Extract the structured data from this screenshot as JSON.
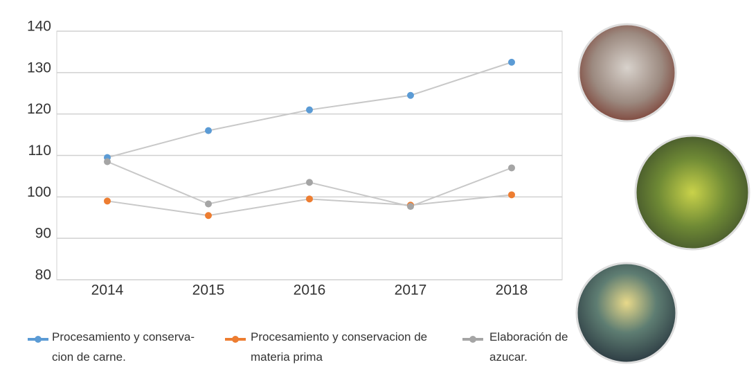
{
  "chart_data": {
    "type": "line",
    "categories": [
      "2014",
      "2015",
      "2016",
      "2017",
      "2018"
    ],
    "series": [
      {
        "name": "Procesamiento y conserva-cion de carne.",
        "color": "#5b9bd5",
        "values": [
          109.5,
          116,
          121,
          124.5,
          132.5
        ]
      },
      {
        "name": "Procesamiento y conservacion de materia prima",
        "color": "#ed7d31",
        "values": [
          99,
          95.5,
          99.5,
          98,
          100.5
        ]
      },
      {
        "name": "Elaboración de azucar.",
        "color": "#a5a5a5",
        "values": [
          108.5,
          98.3,
          103.5,
          97.7,
          107
        ]
      }
    ],
    "line_color": "#c8c8c8",
    "ylim": [
      80,
      140
    ],
    "yticks": [
      80,
      90,
      100,
      110,
      120,
      130,
      140
    ],
    "grid": true
  }
}
